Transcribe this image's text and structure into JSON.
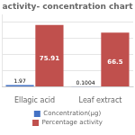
{
  "chart_data": {
    "type": "bar",
    "title": "activity- concentration chart",
    "categories": [
      "Ellagic acid",
      "Leaf extract"
    ],
    "series": [
      {
        "name": "Concentration(µg)",
        "color": "#4472C4",
        "values": [
          1.97,
          0.1004
        ]
      },
      {
        "name": "Percentage activity",
        "color": "#C0504D",
        "values": [
          75.91,
          66.5
        ]
      }
    ],
    "ylim": [
      0,
      88
    ],
    "yticks": [
      0,
      20,
      40,
      60,
      80
    ],
    "grid": true,
    "legend": "bottom",
    "data_labels": true,
    "tick_labels": "x"
  }
}
